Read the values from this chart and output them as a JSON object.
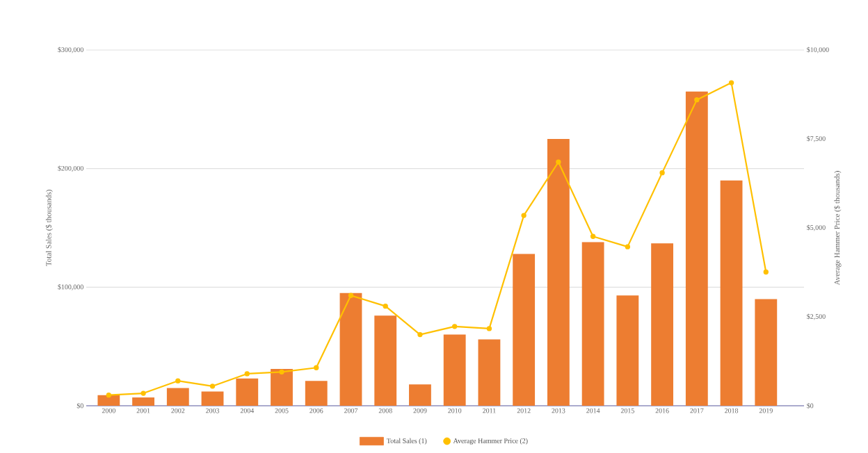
{
  "chart_data": {
    "type": "bar",
    "xlabel": null,
    "ylabel": "Total Sales ($ thousands)",
    "y2label": "Average Hammer Price ($ thousands)",
    "categories": [
      "2000",
      "2001",
      "2002",
      "2003",
      "2004",
      "2005",
      "2006",
      "2007",
      "2008",
      "2009",
      "2010",
      "2011",
      "2012",
      "2013",
      "2014",
      "2015",
      "2016",
      "2017",
      "2018",
      "2019"
    ],
    "series": [
      {
        "name": "Total Sales (1)",
        "color": "#ed7d31",
        "values": [
          9000,
          7000,
          15000,
          12000,
          23000,
          31000,
          21000,
          95000,
          76000,
          18000,
          60000,
          56000,
          128000,
          225000,
          138000,
          93000,
          137000,
          265000,
          190000,
          90000
        ]
      },
      {
        "name": "Average Hammer Price (2)",
        "type": "line",
        "axis": "y2",
        "color": "#ffc000",
        "values": [
          300,
          350,
          700,
          550,
          900,
          950,
          1070,
          3100,
          2800,
          2000,
          2230,
          2170,
          5350,
          6850,
          4760,
          4470,
          6550,
          8600,
          9080,
          3760
        ]
      }
    ],
    "ylim": [
      0,
      300000
    ],
    "yticks": [
      {
        "value": 0,
        "label": "$0"
      },
      {
        "value": 100000,
        "label": "$100,000"
      },
      {
        "value": 200000,
        "label": "$200,000"
      },
      {
        "value": 300000,
        "label": "$300,000"
      }
    ],
    "y2lim": [
      0,
      10000
    ],
    "y2ticks": [
      {
        "value": 0,
        "label": "$0"
      },
      {
        "value": 2500,
        "label": "$2,500"
      },
      {
        "value": 5000,
        "label": "$5,000"
      },
      {
        "value": 7500,
        "label": "$7,500"
      },
      {
        "value": 10000,
        "label": "$10,000"
      }
    ],
    "grid": "y",
    "legend": "bottom",
    "marker": "circle"
  }
}
